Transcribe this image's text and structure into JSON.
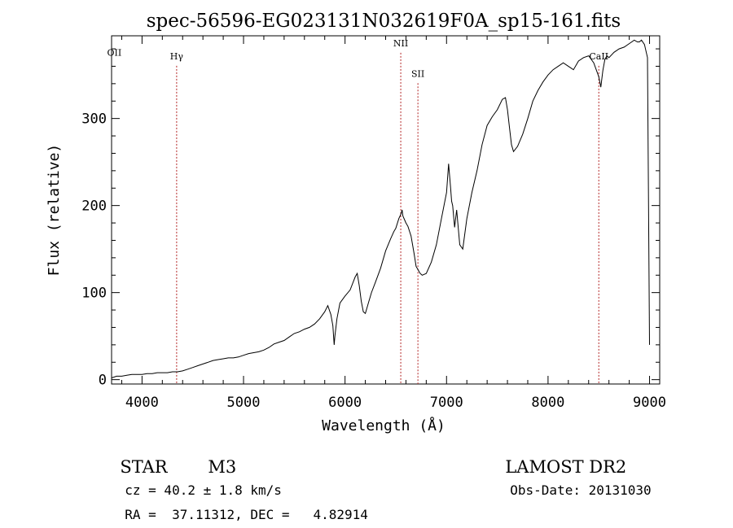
{
  "chart_data": {
    "type": "line",
    "title": "spec-56596-EG023131N032619F0A_sp15-161.fits",
    "xlabel": "Wavelength (Å)",
    "ylabel": "Flux (relative)",
    "xlim": [
      3700,
      9100
    ],
    "ylim": [
      -5,
      395
    ],
    "xticks": [
      4000,
      5000,
      6000,
      7000,
      8000,
      9000
    ],
    "yticks": [
      0,
      100,
      200,
      300
    ],
    "grid": false,
    "line_color": "#000000",
    "marker_color": "#b22222",
    "lines": [
      {
        "label": "OII",
        "x": 3727,
        "label_y": 372
      },
      {
        "label": "Hγ",
        "x": 4341,
        "label_y": 368
      },
      {
        "label": "NII",
        "x": 6549,
        "label_y": 383
      },
      {
        "label": "SII",
        "x": 6718,
        "label_y": 348
      },
      {
        "label": "CaII",
        "x": 8500,
        "label_y": 368
      }
    ],
    "series": [
      {
        "x": [
          3700,
          3750,
          3800,
          3850,
          3900,
          3950,
          4000,
          4050,
          4100,
          4150,
          4200,
          4250,
          4300,
          4350,
          4400,
          4450,
          4500,
          4550,
          4600,
          4650,
          4700,
          4750,
          4800,
          4850,
          4900,
          4950,
          5000,
          5050,
          5100,
          5150,
          5200,
          5250,
          5300,
          5350,
          5400,
          5450,
          5500,
          5550,
          5600,
          5650,
          5700,
          5750,
          5800,
          5830,
          5860,
          5880,
          5893,
          5900,
          5920,
          5950,
          6000,
          6050,
          6080,
          6100,
          6120,
          6140,
          6160,
          6180,
          6200,
          6230,
          6260,
          6300,
          6350,
          6400,
          6450,
          6480,
          6500,
          6530,
          6550,
          6562,
          6570,
          6600,
          6620,
          6650,
          6680,
          6700,
          6720,
          6740,
          6760,
          6800,
          6850,
          6900,
          6950,
          7000,
          7020,
          7040,
          7050,
          7060,
          7080,
          7100,
          7130,
          7160,
          7200,
          7250,
          7300,
          7350,
          7400,
          7450,
          7500,
          7550,
          7580,
          7600,
          7620,
          7640,
          7660,
          7700,
          7750,
          7800,
          7850,
          7900,
          7950,
          8000,
          8050,
          8100,
          8150,
          8200,
          8250,
          8300,
          8350,
          8400,
          8450,
          8500,
          8520,
          8540,
          8560,
          8580,
          8600,
          8650,
          8700,
          8750,
          8800,
          8850,
          8880,
          8900,
          8920,
          8950,
          8980,
          8990,
          9000
        ],
        "y": [
          2,
          4,
          4,
          5,
          6,
          6,
          6,
          7,
          7,
          8,
          8,
          8,
          9,
          9,
          10,
          12,
          14,
          16,
          18,
          20,
          22,
          23,
          24,
          25,
          25,
          26,
          28,
          30,
          31,
          32,
          34,
          37,
          41,
          43,
          45,
          49,
          53,
          55,
          58,
          60,
          64,
          70,
          78,
          85,
          75,
          62,
          40,
          50,
          70,
          88,
          96,
          103,
          112,
          118,
          122,
          108,
          90,
          78,
          76,
          88,
          100,
          112,
          128,
          148,
          162,
          170,
          174,
          185,
          190,
          195,
          188,
          180,
          176,
          165,
          145,
          130,
          126,
          122,
          120,
          122,
          135,
          155,
          185,
          215,
          248,
          220,
          205,
          200,
          175,
          195,
          155,
          150,
          185,
          215,
          240,
          270,
          292,
          302,
          310,
          322,
          324,
          310,
          290,
          270,
          262,
          268,
          282,
          300,
          320,
          332,
          342,
          350,
          356,
          360,
          364,
          360,
          356,
          366,
          370,
          372,
          364,
          348,
          336,
          355,
          368,
          372,
          370,
          376,
          380,
          382,
          386,
          390,
          388,
          388,
          390,
          385,
          370,
          200,
          40
        ]
      }
    ]
  },
  "info": {
    "object_class": "STAR",
    "subclass": "M3",
    "survey": "LAMOST DR2",
    "redshift": "cz = 40.2 ± 1.8 km/s",
    "obs_date": "Obs-Date: 20131030",
    "coords": "RA =  37.11312, DEC =   4.82914"
  }
}
